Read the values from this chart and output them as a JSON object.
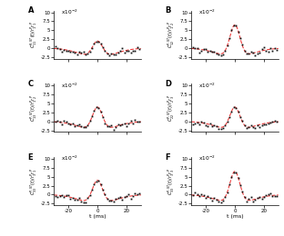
{
  "panel_labels": [
    "A",
    "B",
    "C",
    "D",
    "E",
    "F"
  ],
  "panel_ylabels": [
    "$C_{11}^{\\theta,ST}(t)/r_1^Pr_1^P$",
    "$C_{12}^{P,ST}(t)/r_1^Pr_2^P$",
    "$C_{13}^{P,ST}(t)/r_1^Pr_2^P$",
    "$C_{22}^{P,ST}(t)/r_2^Pr_3^P$",
    "$C_{33}^{P,ST}(t)/r_3^Pr_1^P$",
    "$C_{33}^{P,ST}(t)/r_3^Pr_3^P$"
  ],
  "peak_heights": [
    0.045,
    0.09,
    0.065,
    0.065,
    0.065,
    0.09
  ],
  "trough_depth": -0.025,
  "sigma_peak": 3.5,
  "sigma_trough": 12.0,
  "xlim": [
    -30,
    30
  ],
  "ylim": [
    -0.03,
    0.105
  ],
  "yticks": [
    -0.025,
    0.0,
    0.025,
    0.05,
    0.075,
    0.1
  ],
  "ytick_labels": [
    "-2.5",
    "0",
    "2.5",
    "5",
    "7.5",
    "10"
  ],
  "xticks": [
    -20,
    0,
    20
  ],
  "xtick_labels": [
    "-20",
    "0",
    "20"
  ],
  "xlabel": "t (ms)",
  "scale_label": "x10$^{-2}$",
  "noise_scale": 0.004,
  "data_color": "#111111",
  "fit_color": "#EE3333",
  "background_color": "#ffffff"
}
